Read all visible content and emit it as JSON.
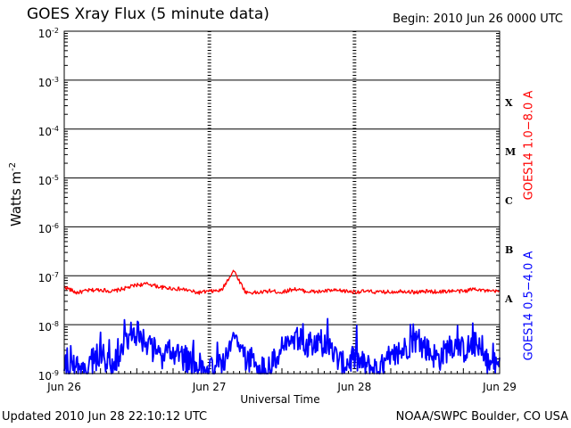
{
  "header": {
    "title": "GOES Xray Flux (5 minute data)",
    "begin": "Begin:  2010 Jun 26 0000 UTC"
  },
  "footer": {
    "updated": "Updated 2010 Jun 28 22:10:12 UTC",
    "credit": "NOAA/SWPC Boulder, CO USA"
  },
  "colors": {
    "long": "#ff0000",
    "short": "#0000ff",
    "axes": "#000000"
  },
  "chart_data": {
    "type": "line",
    "title": "GOES Xray Flux (5 minute data)",
    "xlabel": "Universal Time",
    "ylabel": "Watts m",
    "ylabel_sup": "-2",
    "yscale": "log",
    "ylim": [
      1e-09,
      0.01
    ],
    "xlim": [
      "2010-06-26T00:00Z",
      "2010-06-29T00:00Z"
    ],
    "x_ticks": [
      "Jun 26",
      "Jun 27",
      "Jun 28",
      "Jun 29"
    ],
    "y_ticks": [
      {
        "base": "10",
        "exp": "-2"
      },
      {
        "base": "10",
        "exp": "-3"
      },
      {
        "base": "10",
        "exp": "-4"
      },
      {
        "base": "10",
        "exp": "-5"
      },
      {
        "base": "10",
        "exp": "-6"
      },
      {
        "base": "10",
        "exp": "-7"
      },
      {
        "base": "10",
        "exp": "-8"
      },
      {
        "base": "10",
        "exp": "-9"
      }
    ],
    "flare_classes": [
      {
        "label": "X",
        "flux": 0.0001
      },
      {
        "label": "M",
        "flux": 1e-05
      },
      {
        "label": "C",
        "flux": 1e-06
      },
      {
        "label": "B",
        "flux": 1e-07
      },
      {
        "label": "A",
        "flux": 1e-08
      }
    ],
    "grid": true,
    "series": [
      {
        "name": "GOES14 1.0−8.0 A",
        "color": "#ff0000",
        "x": [
          "2010-06-26T00:00Z",
          "2010-06-26T02:00Z",
          "2010-06-26T04:00Z",
          "2010-06-26T06:00Z",
          "2010-06-26T08:00Z",
          "2010-06-26T10:00Z",
          "2010-06-26T12:00Z",
          "2010-06-26T14:00Z",
          "2010-06-26T16:00Z",
          "2010-06-26T18:00Z",
          "2010-06-26T20:00Z",
          "2010-06-26T22:00Z",
          "2010-06-27T00:00Z",
          "2010-06-27T02:00Z",
          "2010-06-27T04:00Z",
          "2010-06-27T06:00Z",
          "2010-06-27T08:00Z",
          "2010-06-27T10:00Z",
          "2010-06-27T12:00Z",
          "2010-06-27T14:00Z",
          "2010-06-27T16:00Z",
          "2010-06-27T18:00Z",
          "2010-06-27T20:00Z",
          "2010-06-27T22:00Z",
          "2010-06-28T00:00Z",
          "2010-06-28T02:00Z",
          "2010-06-28T04:00Z",
          "2010-06-28T06:00Z",
          "2010-06-28T08:00Z",
          "2010-06-28T10:00Z",
          "2010-06-28T12:00Z",
          "2010-06-28T14:00Z",
          "2010-06-28T16:00Z",
          "2010-06-28T18:00Z",
          "2010-06-28T20:00Z",
          "2010-06-28T22:00Z"
        ],
        "values": [
          6e-08,
          4.5e-08,
          5e-08,
          5.2e-08,
          4.8e-08,
          5.5e-08,
          6.5e-08,
          6.8e-08,
          5.8e-08,
          5.5e-08,
          5.2e-08,
          4.5e-08,
          4.8e-08,
          5e-08,
          1.3e-07,
          4.6e-08,
          4.5e-08,
          4.9e-08,
          4.6e-08,
          5.4e-08,
          4.8e-08,
          4.7e-08,
          5e-08,
          4.9e-08,
          4.7e-08,
          4.8e-08,
          4.6e-08,
          4.7e-08,
          4.9e-08,
          4.6e-08,
          4.8e-08,
          4.7e-08,
          4.9e-08,
          4.8e-08,
          5.5e-08,
          4.8e-08
        ]
      },
      {
        "name": "GOES14 0.5−4.0 A",
        "color": "#0000ff",
        "x": [
          "2010-06-26T00:00Z",
          "2010-06-26T02:00Z",
          "2010-06-26T04:00Z",
          "2010-06-26T06:00Z",
          "2010-06-26T08:00Z",
          "2010-06-26T10:00Z",
          "2010-06-26T12:00Z",
          "2010-06-26T14:00Z",
          "2010-06-26T16:00Z",
          "2010-06-26T18:00Z",
          "2010-06-26T20:00Z",
          "2010-06-26T22:00Z",
          "2010-06-27T00:00Z",
          "2010-06-27T02:00Z",
          "2010-06-27T04:00Z",
          "2010-06-27T06:00Z",
          "2010-06-27T08:00Z",
          "2010-06-27T10:00Z",
          "2010-06-27T12:00Z",
          "2010-06-27T14:00Z",
          "2010-06-27T16:00Z",
          "2010-06-27T18:00Z",
          "2010-06-27T20:00Z",
          "2010-06-27T22:00Z",
          "2010-06-28T00:00Z",
          "2010-06-28T02:00Z",
          "2010-06-28T04:00Z",
          "2010-06-28T06:00Z",
          "2010-06-28T08:00Z",
          "2010-06-28T10:00Z",
          "2010-06-28T12:00Z",
          "2010-06-28T14:00Z",
          "2010-06-28T16:00Z",
          "2010-06-28T18:00Z",
          "2010-06-28T20:00Z",
          "2010-06-28T22:00Z"
        ],
        "values": [
          2e-09,
          1.2e-09,
          1.5e-09,
          2.5e-09,
          1.3e-09,
          4e-09,
          7e-09,
          4e-09,
          2e-09,
          3e-09,
          2e-09,
          1.5e-09,
          1.2e-09,
          1.5e-09,
          6e-09,
          2e-09,
          1.5e-09,
          1.2e-09,
          3.5e-09,
          5e-09,
          4e-09,
          5e-09,
          3e-09,
          1.5e-09,
          2e-09,
          1.4e-09,
          1.2e-09,
          1.8e-09,
          3e-09,
          5e-09,
          3e-09,
          2e-09,
          4e-09,
          3e-09,
          4e-09,
          1.5e-09
        ]
      }
    ]
  }
}
